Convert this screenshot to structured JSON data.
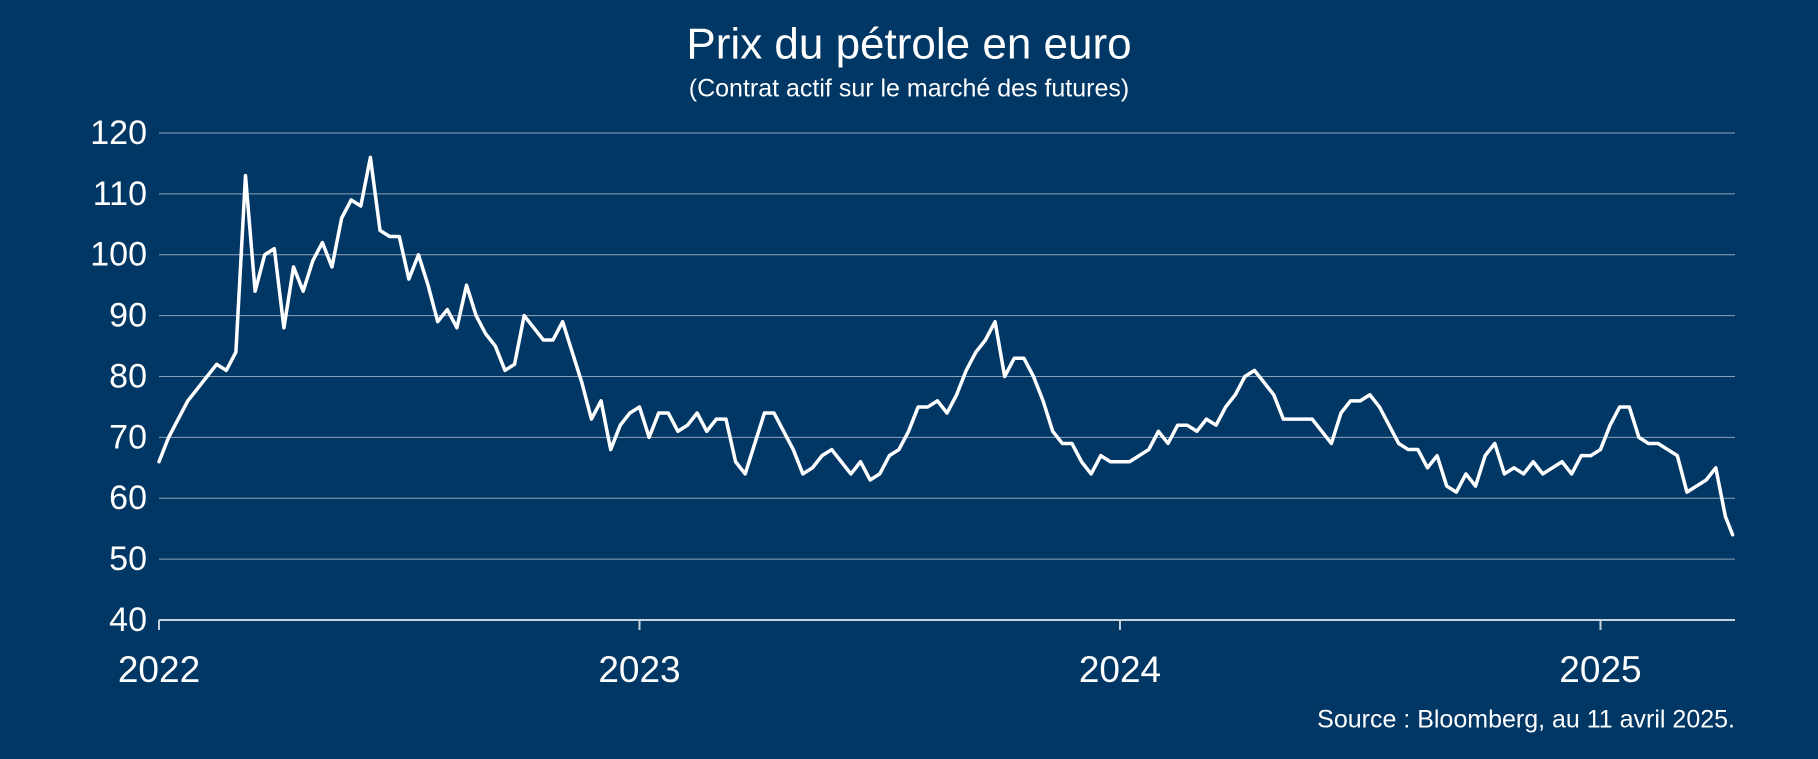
{
  "chart_data": {
    "type": "line",
    "title": "Prix du pétrole en euro",
    "subtitle": "(Contrat actif sur le marché des futures)",
    "source": "Source : Bloomberg, au 11 avril 2025.",
    "x": [
      2022,
      2022.02,
      2022.04,
      2022.06,
      2022.08,
      2022.1,
      2022.12,
      2022.14,
      2022.16,
      2022.18,
      2022.2,
      2022.22,
      2022.24,
      2022.26,
      2022.28,
      2022.3,
      2022.32,
      2022.34,
      2022.36,
      2022.38,
      2022.4,
      2022.42,
      2022.44,
      2022.46,
      2022.48,
      2022.5,
      2022.52,
      2022.54,
      2022.56,
      2022.58,
      2022.6,
      2022.62,
      2022.64,
      2022.66,
      2022.68,
      2022.7,
      2022.72,
      2022.74,
      2022.76,
      2022.78,
      2022.8,
      2022.82,
      2022.84,
      2022.86,
      2022.88,
      2022.9,
      2022.92,
      2022.94,
      2022.96,
      2022.98,
      2023,
      2023.02,
      2023.04,
      2023.06,
      2023.08,
      2023.1,
      2023.12,
      2023.14,
      2023.16,
      2023.18,
      2023.2,
      2023.22,
      2023.24,
      2023.26,
      2023.28,
      2023.3,
      2023.32,
      2023.34,
      2023.36,
      2023.38,
      2023.4,
      2023.42,
      2023.44,
      2023.46,
      2023.48,
      2023.5,
      2023.52,
      2023.54,
      2023.56,
      2023.58,
      2023.6,
      2023.62,
      2023.64,
      2023.66,
      2023.68,
      2023.7,
      2023.72,
      2023.74,
      2023.76,
      2023.78,
      2023.8,
      2023.82,
      2023.84,
      2023.86,
      2023.88,
      2023.9,
      2023.92,
      2023.94,
      2023.96,
      2023.98,
      2024,
      2024.02,
      2024.04,
      2024.06,
      2024.08,
      2024.1,
      2024.12,
      2024.14,
      2024.16,
      2024.18,
      2024.2,
      2024.22,
      2024.24,
      2024.26,
      2024.28,
      2024.3,
      2024.32,
      2024.34,
      2024.36,
      2024.38,
      2024.4,
      2024.42,
      2024.44,
      2024.46,
      2024.48,
      2024.5,
      2024.52,
      2024.54,
      2024.56,
      2024.58,
      2024.6,
      2024.62,
      2024.64,
      2024.66,
      2024.68,
      2024.7,
      2024.72,
      2024.74,
      2024.76,
      2024.78,
      2024.8,
      2024.82,
      2024.84,
      2024.86,
      2024.88,
      2024.9,
      2024.92,
      2024.94,
      2024.96,
      2024.98,
      2025,
      2025.02,
      2025.04,
      2025.06,
      2025.08,
      2025.1,
      2025.12,
      2025.14,
      2025.16,
      2025.18,
      2025.2,
      2025.22,
      2025.24,
      2025.26,
      2025.275
    ],
    "series": [
      {
        "color": "#ffffff",
        "values": [
          66,
          70,
          73,
          76,
          78,
          80,
          82,
          81,
          84,
          113,
          94,
          100,
          101,
          88,
          98,
          94,
          99,
          102,
          98,
          106,
          109,
          108,
          116,
          104,
          103,
          103,
          96,
          100,
          95,
          89,
          91,
          88,
          95,
          90,
          87,
          85,
          81,
          82,
          90,
          88,
          86,
          86,
          89,
          84,
          79,
          73,
          76,
          68,
          72,
          74,
          75,
          70,
          74,
          74,
          71,
          72,
          74,
          71,
          73,
          73,
          66,
          64,
          69,
          74,
          74,
          71,
          68,
          64,
          65,
          67,
          68,
          66,
          64,
          66,
          63,
          64,
          67,
          68,
          71,
          75,
          75,
          76,
          74,
          77,
          81,
          84,
          86,
          89,
          80,
          83,
          83,
          80,
          76,
          71,
          69,
          69,
          66,
          64,
          67,
          66,
          66,
          66,
          67,
          68,
          71,
          69,
          72,
          72,
          71,
          73,
          72,
          75,
          77,
          80,
          81,
          79,
          77,
          73,
          73,
          73,
          73,
          71,
          69,
          74,
          76,
          76,
          77,
          75,
          72,
          69,
          68,
          68,
          65,
          67,
          62,
          61,
          64,
          62,
          67,
          69,
          64,
          65,
          64,
          66,
          64,
          65,
          66,
          64,
          67,
          67,
          68,
          72,
          75,
          75,
          70,
          69,
          69,
          68,
          67,
          61,
          62,
          63,
          65,
          57,
          54
        ]
      }
    ],
    "xlim": [
      2022,
      2025.28
    ],
    "xticks": [
      2022,
      2023,
      2024,
      2025
    ],
    "ylim": [
      40,
      120
    ],
    "yticks": [
      40,
      50,
      60,
      70,
      80,
      90,
      100,
      110,
      120
    ],
    "grid": true
  }
}
